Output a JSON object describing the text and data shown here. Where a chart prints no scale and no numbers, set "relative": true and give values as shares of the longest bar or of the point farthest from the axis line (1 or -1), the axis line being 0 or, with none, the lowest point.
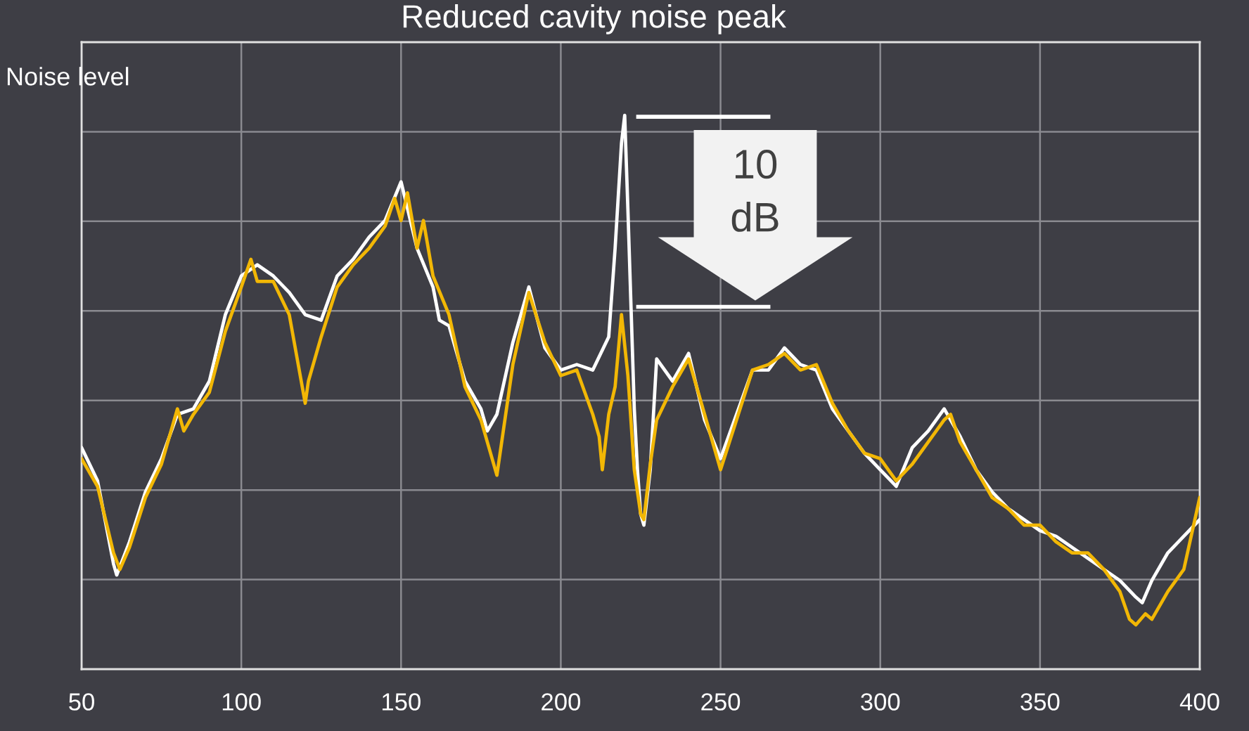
{
  "chart_data": {
    "type": "line",
    "title": "Reduced cavity noise peak",
    "ylabel": "Noise level",
    "relative": true,
    "xlim": [
      50,
      400
    ],
    "xticks": [
      50,
      100,
      150,
      200,
      250,
      300,
      350,
      400
    ],
    "grid": true,
    "series": [
      {
        "color": "#ffffff",
        "x": [
          50,
          55,
          60,
          61,
          65,
          70,
          75,
          80,
          85,
          90,
          95,
          100,
          105,
          110,
          115,
          120,
          125,
          130,
          135,
          140,
          145,
          150,
          155,
          160,
          162,
          165,
          170,
          175,
          177,
          180,
          185,
          190,
          195,
          200,
          205,
          210,
          215,
          217,
          219,
          220,
          221,
          222,
          223,
          224,
          225,
          226,
          228,
          230,
          235,
          240,
          245,
          250,
          255,
          260,
          265,
          270,
          275,
          280,
          285,
          290,
          295,
          300,
          305,
          310,
          315,
          320,
          325,
          330,
          335,
          340,
          345,
          350,
          355,
          360,
          365,
          370,
          375,
          380,
          382,
          385,
          390,
          395,
          400
        ],
        "values": [
          0.4,
          0.34,
          0.19,
          0.17,
          0.23,
          0.32,
          0.38,
          0.46,
          0.47,
          0.52,
          0.64,
          0.71,
          0.73,
          0.71,
          0.68,
          0.64,
          0.63,
          0.71,
          0.74,
          0.78,
          0.81,
          0.88,
          0.76,
          0.69,
          0.63,
          0.62,
          0.52,
          0.47,
          0.43,
          0.46,
          0.59,
          0.69,
          0.58,
          0.54,
          0.55,
          0.54,
          0.6,
          0.76,
          0.95,
          1,
          0.83,
          0.65,
          0.47,
          0.36,
          0.28,
          0.26,
          0.36,
          0.56,
          0.52,
          0.57,
          0.45,
          0.38,
          0.46,
          0.54,
          0.54,
          0.58,
          0.55,
          0.54,
          0.47,
          0.43,
          0.39,
          0.36,
          0.33,
          0.4,
          0.43,
          0.47,
          0.42,
          0.36,
          0.32,
          0.29,
          0.27,
          0.25,
          0.24,
          0.22,
          0.2,
          0.18,
          0.16,
          0.13,
          0.12,
          0.16,
          0.21,
          0.24,
          0.27
        ]
      },
      {
        "color": "#f2b705",
        "x": [
          50,
          55,
          60,
          62,
          65,
          70,
          75,
          80,
          82,
          85,
          90,
          95,
          100,
          103,
          105,
          110,
          115,
          120,
          121,
          125,
          130,
          135,
          140,
          145,
          148,
          150,
          152,
          155,
          157,
          160,
          165,
          170,
          175,
          180,
          185,
          190,
          195,
          200,
          205,
          210,
          212,
          213,
          215,
          217,
          219,
          221,
          223,
          225,
          226,
          228,
          230,
          235,
          240,
          245,
          250,
          255,
          260,
          265,
          270,
          275,
          280,
          285,
          290,
          295,
          300,
          305,
          310,
          315,
          320,
          322,
          325,
          330,
          335,
          340,
          345,
          350,
          355,
          360,
          365,
          370,
          375,
          378,
          380,
          383,
          385,
          390,
          395,
          400
        ],
        "values": [
          0.38,
          0.33,
          0.21,
          0.18,
          0.22,
          0.31,
          0.37,
          0.47,
          0.43,
          0.46,
          0.5,
          0.61,
          0.69,
          0.74,
          0.7,
          0.7,
          0.64,
          0.48,
          0.52,
          0.6,
          0.69,
          0.73,
          0.76,
          0.8,
          0.85,
          0.81,
          0.86,
          0.76,
          0.81,
          0.71,
          0.64,
          0.51,
          0.45,
          0.35,
          0.55,
          0.68,
          0.59,
          0.53,
          0.54,
          0.46,
          0.42,
          0.36,
          0.46,
          0.51,
          0.64,
          0.53,
          0.36,
          0.28,
          0.27,
          0.37,
          0.45,
          0.51,
          0.56,
          0.46,
          0.36,
          0.45,
          0.54,
          0.55,
          0.57,
          0.54,
          0.55,
          0.48,
          0.43,
          0.39,
          0.38,
          0.34,
          0.37,
          0.41,
          0.45,
          0.46,
          0.41,
          0.36,
          0.31,
          0.29,
          0.26,
          0.26,
          0.23,
          0.21,
          0.21,
          0.18,
          0.14,
          0.09,
          0.08,
          0.1,
          0.09,
          0.14,
          0.18,
          0.31
        ]
      }
    ],
    "annotations": [
      "10 dB"
    ]
  }
}
